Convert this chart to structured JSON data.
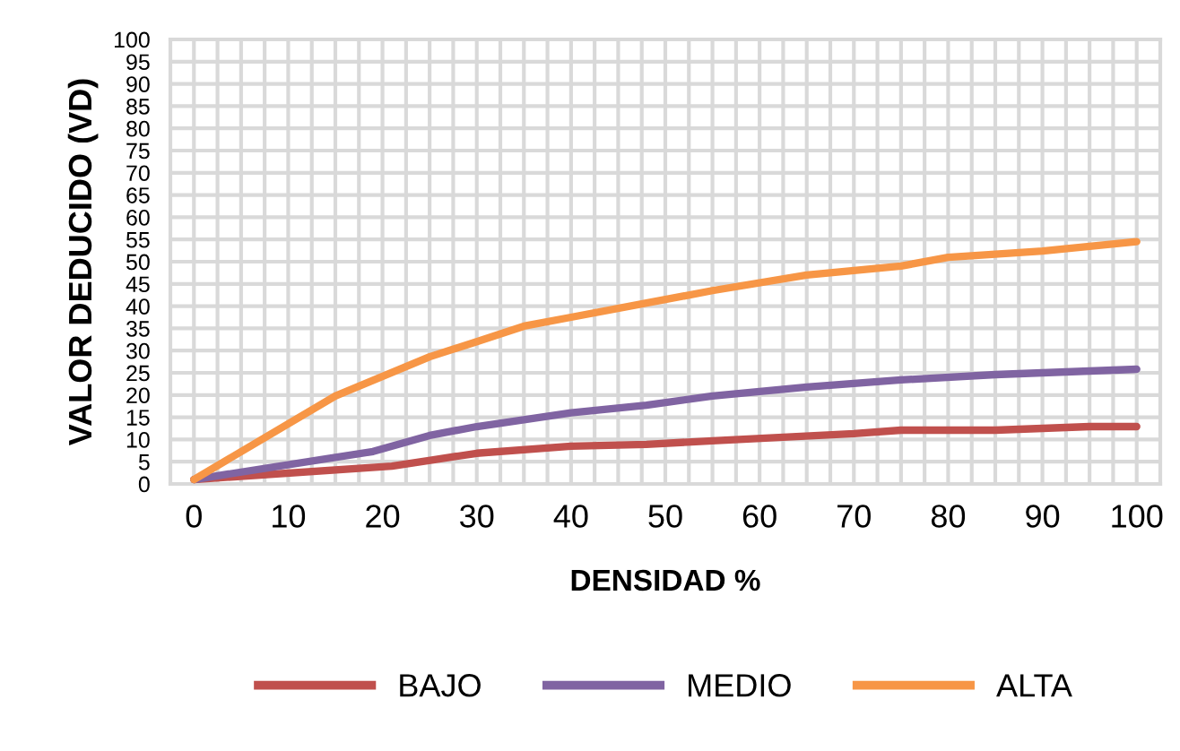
{
  "chart_data": {
    "type": "line",
    "xlabel": "DENSIDAD %",
    "ylabel": "VALOR DEDUCIDO (VD)",
    "xlim": [
      -2.5,
      102.5
    ],
    "ylim": [
      0,
      100
    ],
    "xticks": [
      0,
      {
        "value": 2.5,
        "label": null
      },
      {
        "value": 5,
        "label": null
      },
      {
        "value": 7.5,
        "label": null
      },
      10,
      {
        "value": 12.5,
        "label": null
      },
      {
        "value": 15,
        "label": null
      },
      {
        "value": 17.5,
        "label": null
      },
      20,
      {
        "value": 22.5,
        "label": null
      },
      {
        "value": 25,
        "label": null
      },
      {
        "value": 27.5,
        "label": null
      },
      30,
      {
        "value": 32.5,
        "label": null
      },
      {
        "value": 35,
        "label": null
      },
      {
        "value": 37.5,
        "label": null
      },
      40,
      {
        "value": 42.5,
        "label": null
      },
      {
        "value": 45,
        "label": null
      },
      {
        "value": 47.5,
        "label": null
      },
      50,
      {
        "value": 52.5,
        "label": null
      },
      {
        "value": 55,
        "label": null
      },
      {
        "value": 57.5,
        "label": null
      },
      60,
      {
        "value": 62.5,
        "label": null
      },
      {
        "value": 65,
        "label": null
      },
      {
        "value": 67.5,
        "label": null
      },
      70,
      {
        "value": 72.5,
        "label": null
      },
      {
        "value": 75,
        "label": null
      },
      {
        "value": 77.5,
        "label": null
      },
      80,
      {
        "value": 82.5,
        "label": null
      },
      {
        "value": 85,
        "label": null
      },
      {
        "value": 87.5,
        "label": null
      },
      90,
      {
        "value": 92.5,
        "label": null
      },
      {
        "value": 95,
        "label": null
      },
      {
        "value": 97.5,
        "label": null
      },
      100
    ],
    "yticks": [
      0,
      5,
      10,
      15,
      20,
      25,
      30,
      35,
      40,
      45,
      50,
      55,
      60,
      65,
      70,
      75,
      80,
      85,
      90,
      95,
      100
    ],
    "grid": true,
    "legend": "bottom",
    "marker": "none",
    "line_style": "solid",
    "series": [
      {
        "name": "BAJO",
        "color": "#c0504d",
        "x": [
          0,
          21,
          30,
          40,
          48,
          55,
          70,
          75,
          85,
          95,
          100
        ],
        "values": [
          1,
          4,
          6.9,
          8.5,
          8.9,
          9.7,
          11.3,
          12.1,
          12.1,
          12.9,
          12.9
        ]
      },
      {
        "name": "MEDIO",
        "color": "#8064a2",
        "x": [
          0,
          19,
          25,
          30,
          40,
          48,
          55,
          65,
          75,
          85,
          100
        ],
        "values": [
          1,
          7.3,
          10.9,
          12.9,
          16,
          17.7,
          19.8,
          21.8,
          23.4,
          24.6,
          25.8
        ]
      },
      {
        "name": "ALTA",
        "color": "#f79646",
        "x": [
          0,
          15,
          25,
          30,
          35,
          40,
          48,
          55,
          65,
          75,
          80,
          90,
          100
        ],
        "values": [
          1,
          19.8,
          28.6,
          32,
          35.5,
          37.5,
          40.7,
          43.5,
          47,
          49,
          51,
          52.4,
          54.5
        ]
      }
    ]
  }
}
